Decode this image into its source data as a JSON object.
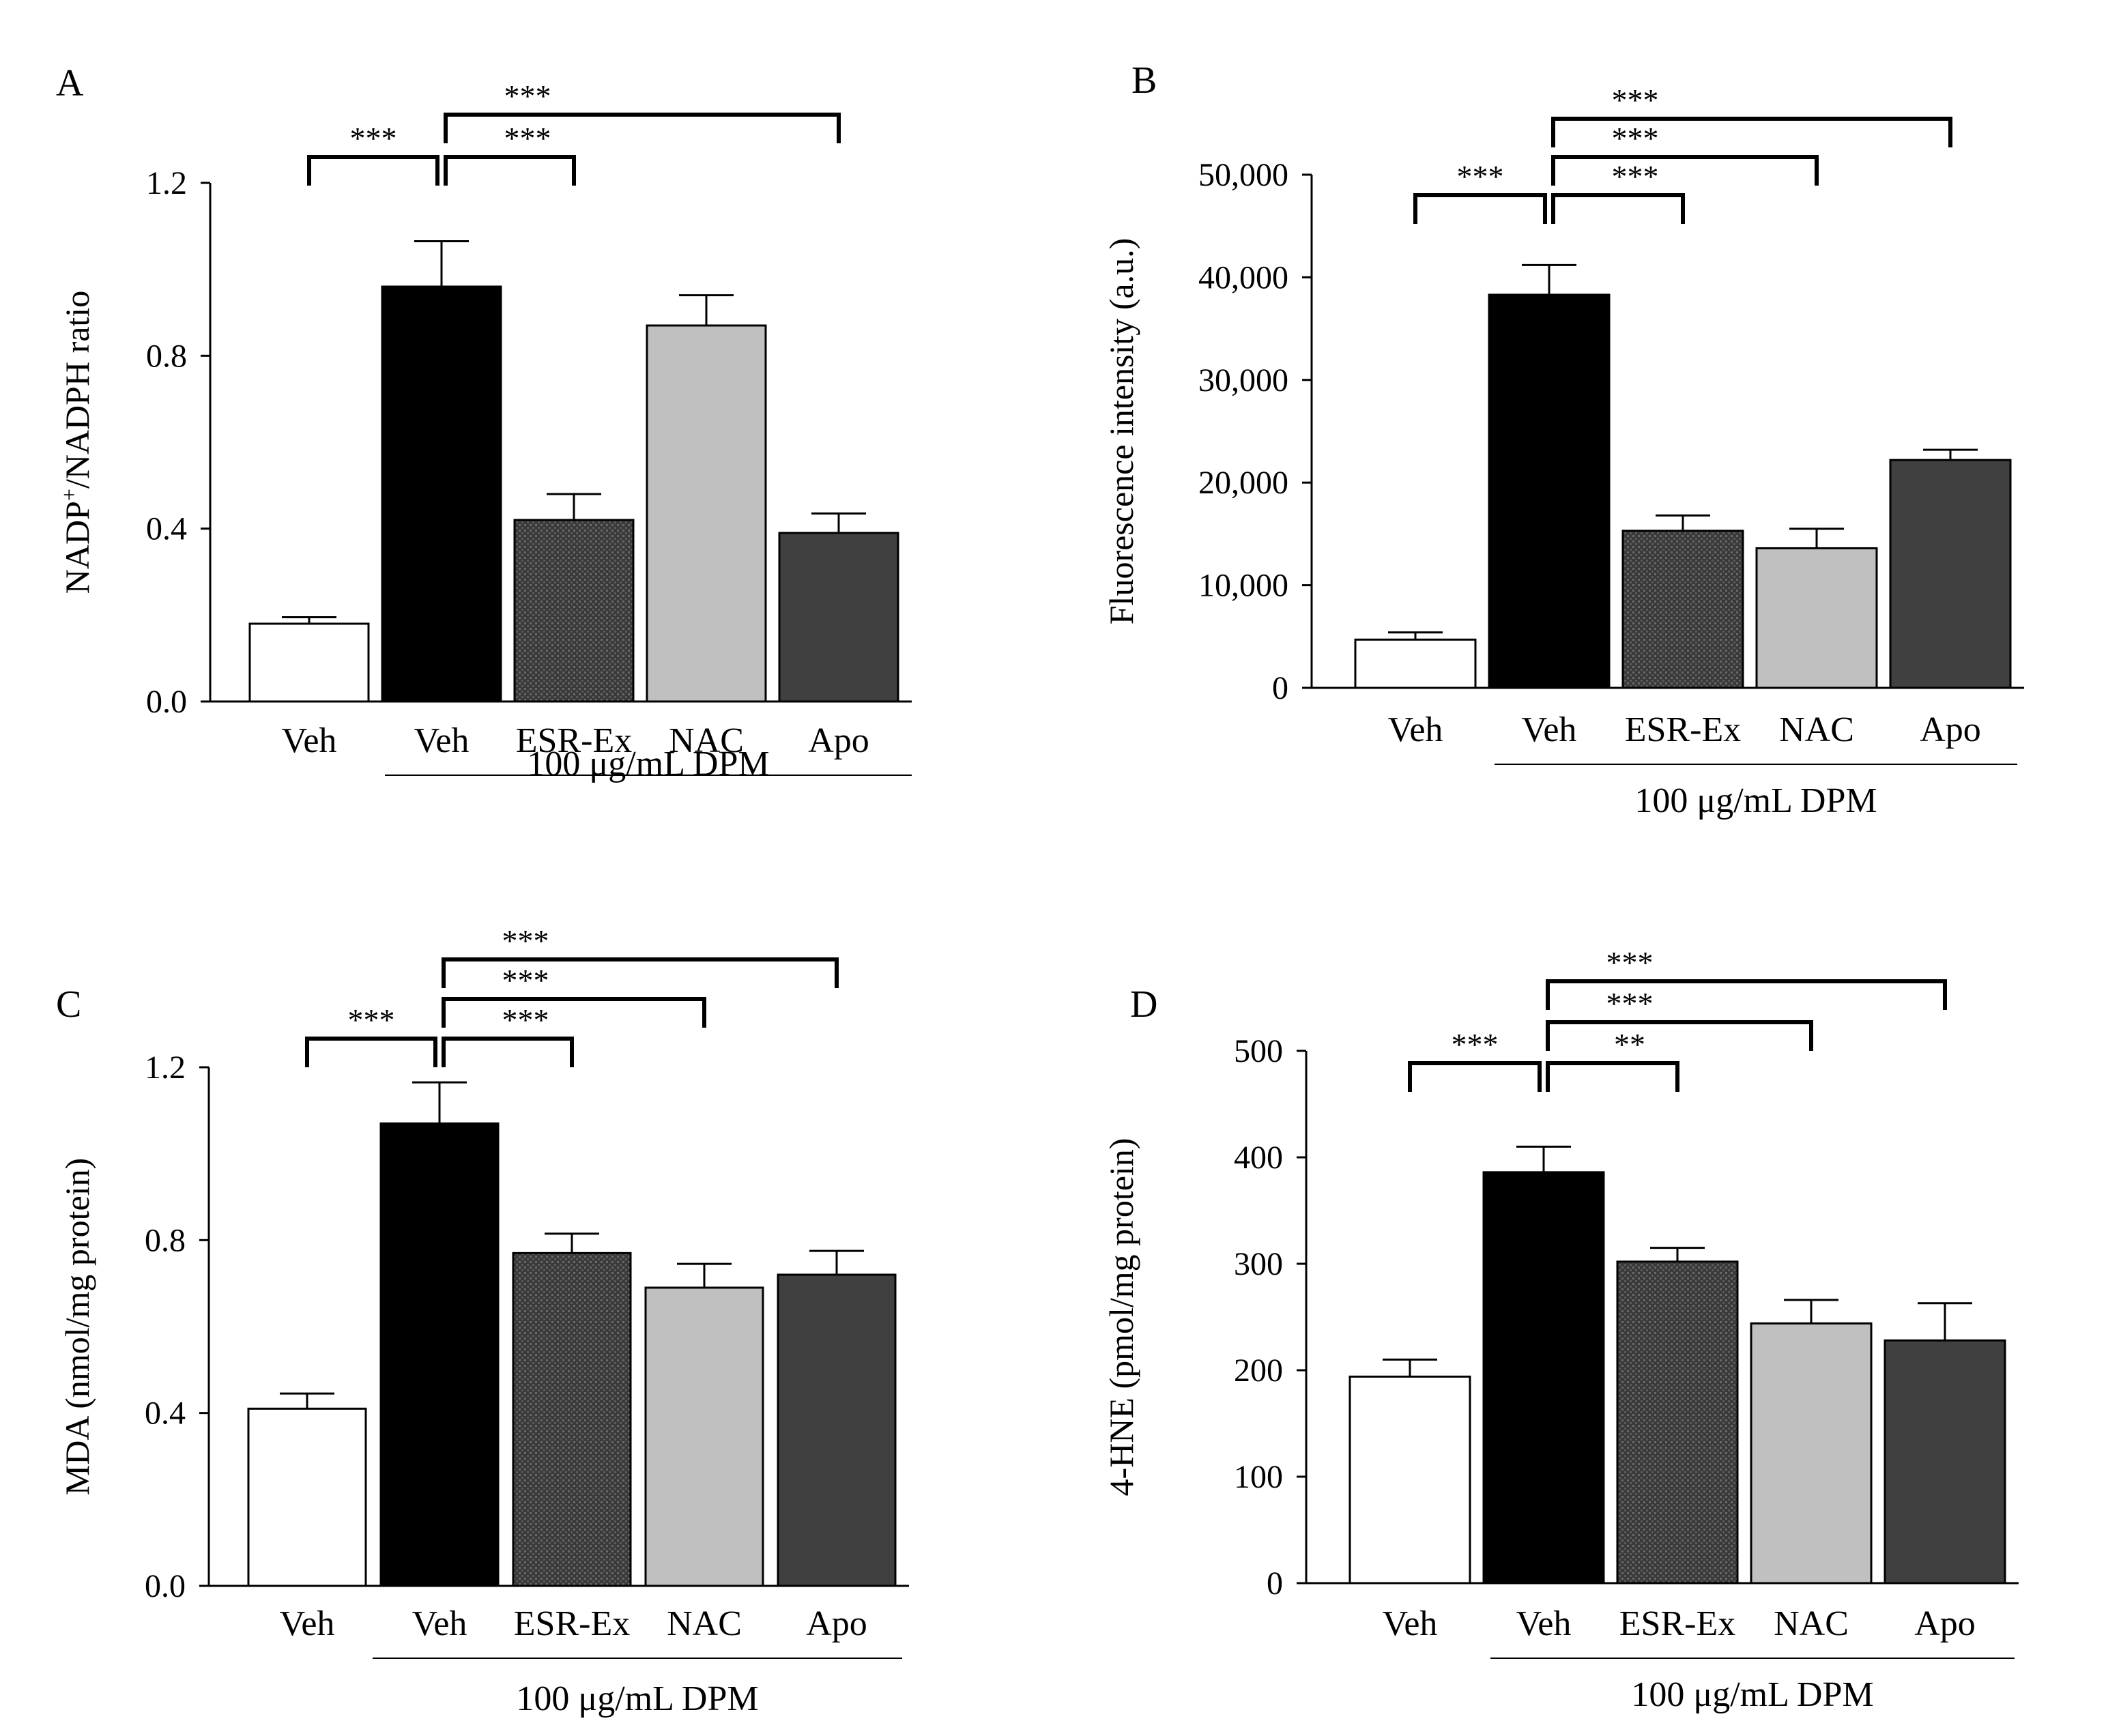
{
  "figure": {
    "colors": {
      "veh_control": "#ffffff",
      "veh_dpm": "#000000",
      "esr_ex": "#3a3a3a",
      "nac": "#c0c0c0",
      "apo": "#404040",
      "axis": "#000000"
    }
  },
  "chart_data": [
    {
      "panel": "A",
      "type": "bar",
      "ylabel_main": "NADP",
      "ylabel_sup": "+",
      "ylabel_rest": "/NADPH ratio",
      "categories": [
        "Veh",
        "Veh",
        "ESR-Ex",
        "NAC",
        "Apo"
      ],
      "values": [
        0.18,
        0.96,
        0.42,
        0.87,
        0.39
      ],
      "errors": [
        0.015,
        0.105,
        0.06,
        0.07,
        0.045
      ],
      "ylim": [
        0,
        1.2
      ],
      "yticks": [
        "0.0",
        "0.4",
        "0.8",
        "1.2"
      ],
      "group_label": "100 μg/mL DPM",
      "significance": [
        {
          "from": 0,
          "to": 1,
          "label": "***"
        },
        {
          "from": 1,
          "to": 2,
          "label": "***"
        },
        {
          "from": 1,
          "to": 4,
          "label": "***"
        }
      ]
    },
    {
      "panel": "B",
      "type": "bar",
      "ylabel_main": "Fluorescence intensity (a.u.)",
      "ylabel_sup": "",
      "ylabel_rest": "",
      "categories": [
        "Veh",
        "Veh",
        "ESR-Ex",
        "NAC",
        "Apo"
      ],
      "values": [
        4700,
        38300,
        15300,
        13600,
        22200
      ],
      "errors": [
        700,
        2900,
        1500,
        1900,
        1000
      ],
      "ylim": [
        0,
        50000
      ],
      "yticks": [
        "0",
        "10,000",
        "20,000",
        "30,000",
        "40,000",
        "50,000"
      ],
      "group_label": "100 μg/mL DPM",
      "significance": [
        {
          "from": 0,
          "to": 1,
          "label": "***"
        },
        {
          "from": 1,
          "to": 2,
          "label": "***"
        },
        {
          "from": 1,
          "to": 3,
          "label": "***"
        },
        {
          "from": 1,
          "to": 4,
          "label": "***"
        }
      ]
    },
    {
      "panel": "C",
      "type": "bar",
      "ylabel_main": "MDA (nmol/mg protein)",
      "ylabel_sup": "",
      "ylabel_rest": "",
      "categories": [
        "Veh",
        "Veh",
        "ESR-Ex",
        "NAC",
        "Apo"
      ],
      "values": [
        0.41,
        1.07,
        0.77,
        0.69,
        0.72
      ],
      "errors": [
        0.035,
        0.095,
        0.045,
        0.055,
        0.055
      ],
      "ylim": [
        0,
        1.2
      ],
      "yticks": [
        "0.0",
        "0.4",
        "0.8",
        "1.2"
      ],
      "group_label": "100 μg/mL DPM",
      "significance": [
        {
          "from": 0,
          "to": 1,
          "label": "***"
        },
        {
          "from": 1,
          "to": 2,
          "label": "***"
        },
        {
          "from": 1,
          "to": 3,
          "label": "***"
        },
        {
          "from": 1,
          "to": 4,
          "label": "***"
        }
      ]
    },
    {
      "panel": "D",
      "type": "bar",
      "ylabel_main": "4-HNE (pmol/mg protein)",
      "ylabel_sup": "",
      "ylabel_rest": "",
      "categories": [
        "Veh",
        "Veh",
        "ESR-Ex",
        "NAC",
        "Apo"
      ],
      "values": [
        194,
        386,
        302,
        244,
        228
      ],
      "errors": [
        16,
        24,
        13,
        22,
        35
      ],
      "ylim": [
        0,
        500
      ],
      "yticks": [
        "0",
        "100",
        "200",
        "300",
        "400",
        "500"
      ],
      "group_label": "100 μg/mL DPM",
      "significance": [
        {
          "from": 0,
          "to": 1,
          "label": "***"
        },
        {
          "from": 1,
          "to": 2,
          "label": "**"
        },
        {
          "from": 1,
          "to": 3,
          "label": "***"
        },
        {
          "from": 1,
          "to": 4,
          "label": "***"
        }
      ]
    }
  ]
}
